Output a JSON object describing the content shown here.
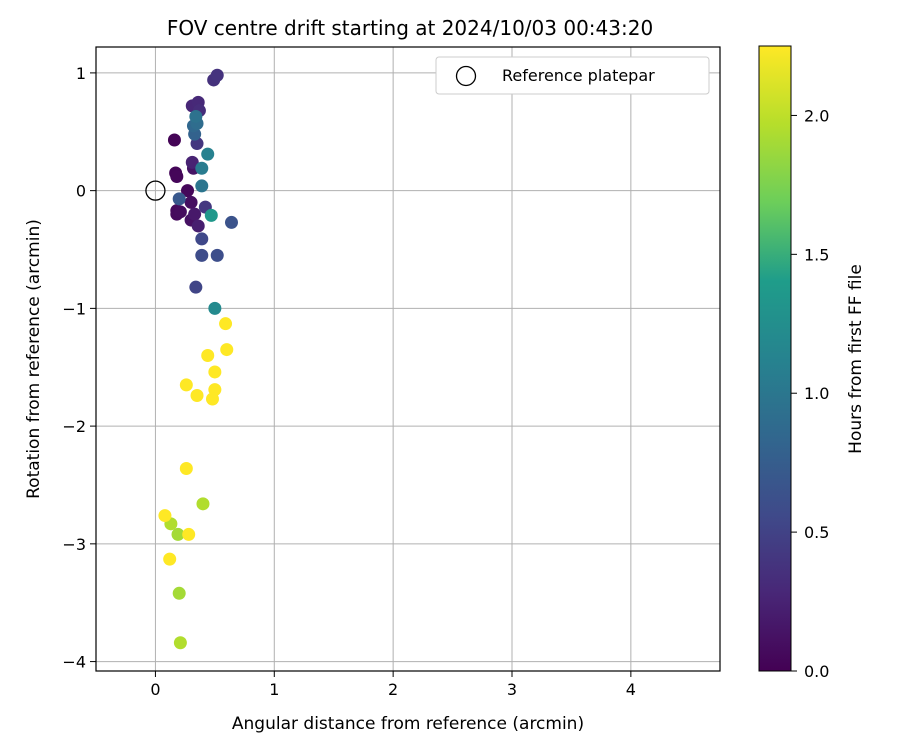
{
  "chart_data": {
    "type": "scatter",
    "title": "FOV centre drift starting at 2024/10/03 00:43:20",
    "xlabel": "Angular distance from reference (arcmin)",
    "ylabel": "Rotation from reference (arcmin)",
    "xlim": [
      -0.5,
      4.75
    ],
    "ylim": [
      -4.08,
      1.22
    ],
    "xticks": [
      0,
      1,
      2,
      3,
      4
    ],
    "yticks": [
      -4,
      -3,
      -2,
      -1,
      0,
      1
    ],
    "grid": true,
    "legend": {
      "position": "top-right",
      "entries": [
        "Reference platepar"
      ]
    },
    "reference_point": {
      "x": 0,
      "y": 0
    },
    "colorbar": {
      "label": "Hours from first FF file",
      "range": [
        0,
        2.25
      ],
      "ticks": [
        0.0,
        0.5,
        1.0,
        1.5,
        2.0
      ],
      "tick_labels": [
        "0.0",
        "0.5",
        "1.0",
        "1.5",
        "2.0"
      ],
      "colormap": [
        "#440154",
        "#482777",
        "#3f4a8a",
        "#31678e",
        "#26838f",
        "#1f9d8a",
        "#6cce5a",
        "#b6de2b",
        "#fee825"
      ]
    },
    "points": [
      {
        "x": 0.16,
        "y": 0.43,
        "c": 0.02
      },
      {
        "x": 0.17,
        "y": 0.15,
        "c": 0.03
      },
      {
        "x": 0.18,
        "y": 0.12,
        "c": 0.04
      },
      {
        "x": 0.27,
        "y": 0.0,
        "c": 0.05
      },
      {
        "x": 0.18,
        "y": -0.17,
        "c": 0.06
      },
      {
        "x": 0.18,
        "y": -0.2,
        "c": 0.07
      },
      {
        "x": 0.21,
        "y": -0.18,
        "c": 0.08
      },
      {
        "x": 0.3,
        "y": -0.1,
        "c": 0.1
      },
      {
        "x": 0.3,
        "y": -0.25,
        "c": 0.12
      },
      {
        "x": 0.32,
        "y": 0.19,
        "c": 0.14
      },
      {
        "x": 0.33,
        "y": -0.2,
        "c": 0.18
      },
      {
        "x": 0.36,
        "y": -0.3,
        "c": 0.22
      },
      {
        "x": 0.31,
        "y": 0.24,
        "c": 0.25
      },
      {
        "x": 0.31,
        "y": 0.72,
        "c": 0.28
      },
      {
        "x": 0.36,
        "y": 0.75,
        "c": 0.3
      },
      {
        "x": 0.37,
        "y": 0.68,
        "c": 0.33
      },
      {
        "x": 0.49,
        "y": 0.94,
        "c": 0.36
      },
      {
        "x": 0.52,
        "y": 0.98,
        "c": 0.38
      },
      {
        "x": 0.35,
        "y": 0.4,
        "c": 0.4
      },
      {
        "x": 0.42,
        "y": -0.14,
        "c": 0.42
      },
      {
        "x": 0.34,
        "y": -0.82,
        "c": 0.52
      },
      {
        "x": 0.39,
        "y": -0.41,
        "c": 0.55
      },
      {
        "x": 0.39,
        "y": -0.55,
        "c": 0.58
      },
      {
        "x": 0.52,
        "y": -0.55,
        "c": 0.6
      },
      {
        "x": 0.64,
        "y": -0.27,
        "c": 0.65
      },
      {
        "x": 0.2,
        "y": -0.07,
        "c": 0.7
      },
      {
        "x": 0.33,
        "y": 0.48,
        "c": 0.8
      },
      {
        "x": 0.32,
        "y": 0.55,
        "c": 0.85
      },
      {
        "x": 0.35,
        "y": 0.57,
        "c": 0.9
      },
      {
        "x": 0.34,
        "y": 0.63,
        "c": 0.95
      },
      {
        "x": 0.39,
        "y": 0.04,
        "c": 0.98
      },
      {
        "x": 0.39,
        "y": 0.19,
        "c": 1.05
      },
      {
        "x": 0.44,
        "y": 0.31,
        "c": 1.1
      },
      {
        "x": 0.5,
        "y": -1.0,
        "c": 1.2
      },
      {
        "x": 0.47,
        "y": -0.21,
        "c": 1.35
      },
      {
        "x": 0.13,
        "y": -2.83,
        "c": 1.95
      },
      {
        "x": 0.19,
        "y": -2.92,
        "c": 1.9
      },
      {
        "x": 0.4,
        "y": -2.66,
        "c": 1.95
      },
      {
        "x": 0.2,
        "y": -3.42,
        "c": 1.9
      },
      {
        "x": 0.21,
        "y": -3.84,
        "c": 1.95
      },
      {
        "x": 0.08,
        "y": -2.76,
        "c": 2.25
      },
      {
        "x": 0.12,
        "y": -3.13,
        "c": 2.25
      },
      {
        "x": 0.26,
        "y": -2.36,
        "c": 2.25
      },
      {
        "x": 0.28,
        "y": -2.92,
        "c": 2.25
      },
      {
        "x": 0.26,
        "y": -1.65,
        "c": 2.25
      },
      {
        "x": 0.35,
        "y": -1.74,
        "c": 2.25
      },
      {
        "x": 0.44,
        "y": -1.4,
        "c": 2.25
      },
      {
        "x": 0.5,
        "y": -1.54,
        "c": 2.25
      },
      {
        "x": 0.5,
        "y": -1.69,
        "c": 2.25
      },
      {
        "x": 0.48,
        "y": -1.77,
        "c": 2.25
      },
      {
        "x": 0.59,
        "y": -1.13,
        "c": 2.25
      },
      {
        "x": 0.6,
        "y": -1.35,
        "c": 2.25
      }
    ]
  }
}
